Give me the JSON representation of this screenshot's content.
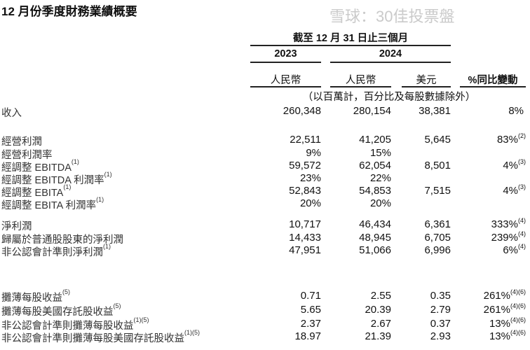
{
  "title": "12 月份季度財務業績概要",
  "header": {
    "period": "截至 12 月 31 日止三個月",
    "year_2023": "2023",
    "year_2024": "2024",
    "col_rmb_2023": "人民幣",
    "col_rmb_2024": "人民幣",
    "col_usd": "美元",
    "col_yoy": "%同比變動",
    "unit_note": "（以百萬計，百分比及每股數據除外）"
  },
  "rows": [
    {
      "label": "收入",
      "note": "",
      "v2023": "260,348",
      "v2024": "280,154",
      "usd": "38,381",
      "yoy": "8%",
      "yoy_note": ""
    },
    {
      "label": "經營利潤",
      "note": "",
      "v2023": "22,511",
      "v2024": "41,205",
      "usd": "5,645",
      "yoy": "83%",
      "yoy_note": "(2)"
    },
    {
      "label": "經營利潤率",
      "note": "",
      "v2023": "9%",
      "v2024": "15%",
      "usd": "",
      "yoy": "",
      "yoy_note": ""
    },
    {
      "label": "經調整 EBITDA",
      "note": "(1)",
      "v2023": "59,572",
      "v2024": "62,054",
      "usd": "8,501",
      "yoy": "4%",
      "yoy_note": "(3)"
    },
    {
      "label": "經調整 EBITDA 利潤率",
      "note": "(1)",
      "v2023": "23%",
      "v2024": "22%",
      "usd": "",
      "yoy": "",
      "yoy_note": ""
    },
    {
      "label": "經調整 EBITA",
      "note": "(1)",
      "v2023": "52,843",
      "v2024": "54,853",
      "usd": "7,515",
      "yoy": "4%",
      "yoy_note": "(3)"
    },
    {
      "label": "經調整 EBITA 利潤率",
      "note": "(1)",
      "v2023": "20%",
      "v2024": "20%",
      "usd": "",
      "yoy": "",
      "yoy_note": ""
    },
    {
      "label": "淨利潤",
      "note": "",
      "v2023": "10,717",
      "v2024": "46,434",
      "usd": "6,361",
      "yoy": "333%",
      "yoy_note": "(4)"
    },
    {
      "label": "歸屬於普通股股東的淨利潤",
      "note": "",
      "v2023": "14,433",
      "v2024": "48,945",
      "usd": "6,705",
      "yoy": "239%",
      "yoy_note": "(4)"
    },
    {
      "label": "非公認會計準則淨利潤",
      "note": "(1)",
      "v2023": "47,951",
      "v2024": "51,066",
      "usd": "6,996",
      "yoy": "6%",
      "yoy_note": "(4)"
    },
    {
      "label": "攤薄每股收益",
      "note": "(5)",
      "v2023": "0.71",
      "v2024": "2.55",
      "usd": "0.35",
      "yoy": "261%",
      "yoy_note": "(4)(6)"
    },
    {
      "label": "攤薄每股美國存託股收益",
      "note": "(5)",
      "v2023": "5.65",
      "v2024": "20.39",
      "usd": "2.79",
      "yoy": "261%",
      "yoy_note": "(4)(6)"
    },
    {
      "label": "非公認會計準則攤薄每股收益",
      "note": "(1)(5)",
      "v2023": "2.37",
      "v2024": "2.67",
      "usd": "0.37",
      "yoy": "13%",
      "yoy_note": "(4)(6)"
    },
    {
      "label": "非公認會計準則攤薄每股美國存託股收益",
      "note": "(1)(5)",
      "v2023": "18.97",
      "v2024": "21.39",
      "usd": "2.93",
      "yoy": "13%",
      "yoy_note": "(4)(6)"
    }
  ],
  "watermark": "雪球：30佳投票盤"
}
